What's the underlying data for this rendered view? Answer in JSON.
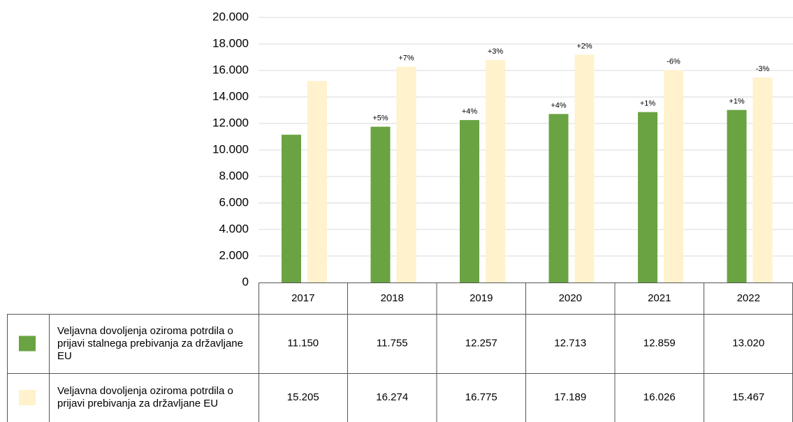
{
  "chart_data": {
    "type": "bar",
    "categories": [
      "2017",
      "2018",
      "2019",
      "2020",
      "2021",
      "2022"
    ],
    "series": [
      {
        "name": "Veljavna dovoljenja oziroma potrdila o prijavi stalnega prebivanja za državljane EU",
        "color": "#6aa342",
        "values": [
          11150,
          11755,
          12257,
          12713,
          12859,
          13020
        ],
        "value_labels": [
          "11.150",
          "11.755",
          "12.257",
          "12.713",
          "12.859",
          "13.020"
        ],
        "changes": [
          null,
          "+5%",
          "+4%",
          "+4%",
          "+1%",
          "+1%"
        ]
      },
      {
        "name": "Veljavna dovoljenja oziroma potrdila o prijavi prebivanja za državljane EU",
        "color": "#fff2cc",
        "values": [
          15205,
          16274,
          16775,
          17189,
          16026,
          15467
        ],
        "value_labels": [
          "15.205",
          "16.274",
          "16.775",
          "17.189",
          "16.026",
          "15.467"
        ],
        "changes": [
          null,
          "+7%",
          "+3%",
          "+2%",
          "-6%",
          "-3%"
        ]
      }
    ],
    "ylim": [
      0,
      20000
    ],
    "yticks": [
      0,
      {
        "value": 2000,
        "label": "2.000"
      },
      {
        "value": 4000,
        "label": "4.000"
      },
      {
        "value": 6000,
        "label": "6.000"
      },
      {
        "value": 8000,
        "label": "8.000"
      },
      {
        "value": 10000,
        "label": "10.000"
      },
      {
        "value": 12000,
        "label": "12.000"
      },
      {
        "value": 14000,
        "label": "14.000"
      },
      {
        "value": 16000,
        "label": "16.000"
      },
      {
        "value": 18000,
        "label": "18.000"
      },
      {
        "value": 20000,
        "label": "20.000"
      }
    ],
    "grid": true
  }
}
